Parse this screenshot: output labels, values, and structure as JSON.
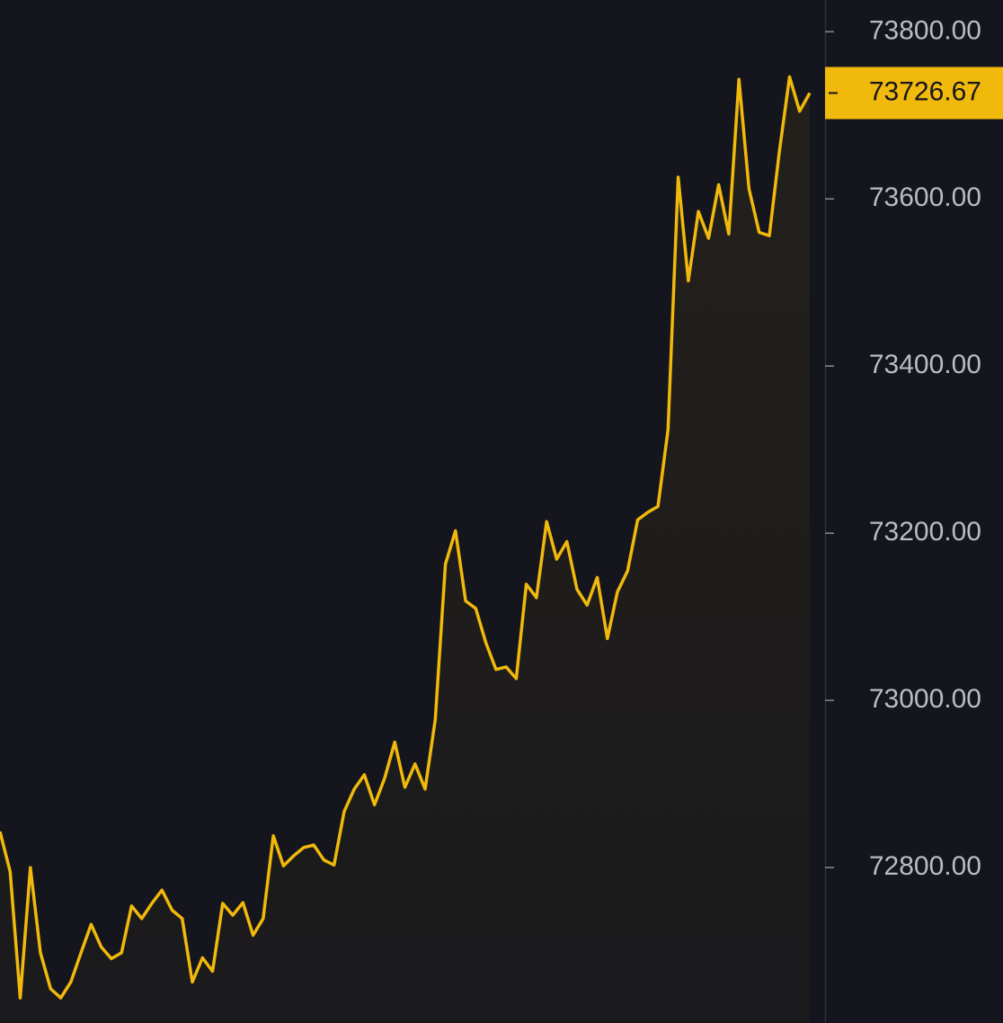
{
  "chart_data": {
    "type": "line",
    "values": [
      72843,
      72795,
      72644,
      72800,
      72698,
      72655,
      72644,
      72663,
      72698,
      72732,
      72705,
      72691,
      72698,
      72754,
      72739,
      72757,
      72773,
      72749,
      72739,
      72663,
      72692,
      72676,
      72757,
      72743,
      72758,
      72719,
      72739,
      72838,
      72802,
      72814,
      72824,
      72827,
      72809,
      72803,
      72867,
      72894,
      72911,
      72875,
      72907,
      72950,
      72896,
      72924,
      72894,
      72977,
      73163,
      73203,
      73119,
      73110,
      73069,
      73037,
      73040,
      73026,
      73139,
      73123,
      73214,
      73169,
      73190,
      73133,
      73114,
      73147,
      73074,
      73130,
      73155,
      73216,
      73225,
      73232,
      73324,
      73626,
      73502,
      73585,
      73553,
      73617,
      73558,
      73743,
      73612,
      73560,
      73556,
      73657,
      73746,
      73705,
      73726.67
    ],
    "color": "#f0b90b",
    "ylim": [
      72614,
      73838
    ],
    "yticks": [
      {
        "value": 72800,
        "label": "72800.00"
      },
      {
        "value": 73000,
        "label": "73000.00"
      },
      {
        "value": 73200,
        "label": "73200.00"
      },
      {
        "value": 73400,
        "label": "73400.00"
      },
      {
        "value": 73600,
        "label": "73600.00"
      },
      {
        "value": 73800,
        "label": "73800.00"
      }
    ],
    "area": true,
    "last_price_tag": true
  }
}
